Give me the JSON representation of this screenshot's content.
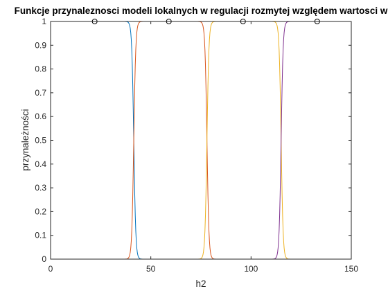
{
  "chart_data": {
    "type": "line",
    "title": "Funkcje przynaleznosci modeli lokalnych w regulacji rozmytej względem wartosci w",
    "xlabel": "h2",
    "ylabel": "przynależności",
    "xlim": [
      0,
      150
    ],
    "ylim": [
      0,
      1
    ],
    "xticks": [
      "0",
      "50",
      "100",
      "150"
    ],
    "yticks": [
      "0",
      "0.1",
      "0.2",
      "0.3",
      "0.4",
      "0.5",
      "0.6",
      "0.7",
      "0.8",
      "0.9",
      "1"
    ],
    "grid": false,
    "x_range": [
      5,
      150
    ],
    "steepness": 2,
    "series": [
      {
        "color": "#0072BD",
        "rise": null,
        "fall": 41.5
      },
      {
        "color": "#D95319",
        "rise": 41.5,
        "fall": 78
      },
      {
        "color": "#EDB120",
        "rise": 78,
        "fall": 115
      },
      {
        "color": "#7E2F8E",
        "rise": 115,
        "fall": null
      }
    ],
    "markers": [
      {
        "x": 22,
        "y": 1
      },
      {
        "x": 59,
        "y": 1
      },
      {
        "x": 96,
        "y": 1
      },
      {
        "x": 133,
        "y": 1
      }
    ]
  }
}
